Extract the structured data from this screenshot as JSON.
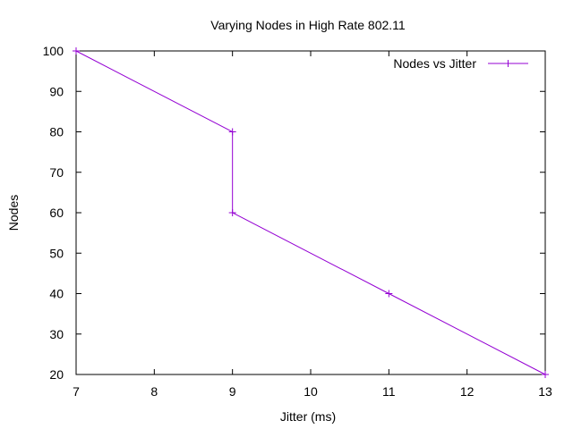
{
  "chart_data": {
    "type": "line",
    "title": "Varying Nodes in High Rate 802.11",
    "xlabel": "Jitter (ms)",
    "ylabel": "Nodes",
    "xlim": [
      7,
      13
    ],
    "ylim": [
      20,
      100
    ],
    "x_ticks": [
      7,
      8,
      9,
      10,
      11,
      12,
      13
    ],
    "y_ticks": [
      20,
      30,
      40,
      50,
      60,
      70,
      80,
      90,
      100
    ],
    "grid": false,
    "legend_position": "top-right",
    "series": [
      {
        "name": "Nodes vs Jitter",
        "color": "#9400d3",
        "marker": "plus",
        "points": [
          {
            "x": 7,
            "y": 100
          },
          {
            "x": 9,
            "y": 80
          },
          {
            "x": 9,
            "y": 60
          },
          {
            "x": 11,
            "y": 40
          },
          {
            "x": 13,
            "y": 20
          }
        ]
      }
    ]
  }
}
